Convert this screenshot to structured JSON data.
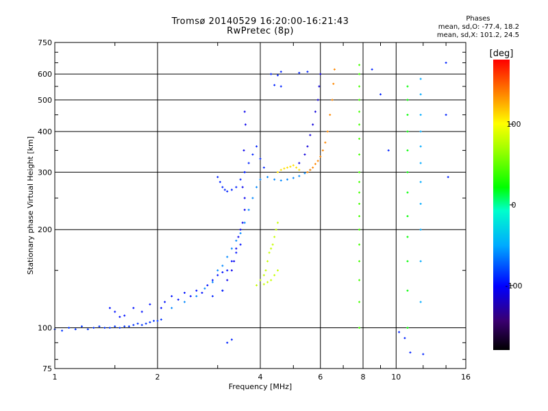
{
  "chart_data": {
    "type": "scatter",
    "title": "Tromsø 20140529 16:20:00-16:21:43",
    "subtitle": "RwPretec (8p)",
    "xlabel": "Frequency [MHz]",
    "ylabel": "Stationary phase Virtual Height [km]",
    "xscale": "log",
    "yscale": "log",
    "xlim": [
      1,
      16
    ],
    "ylim": [
      75,
      750
    ],
    "xticks": [
      1,
      2,
      4,
      6,
      8,
      10,
      16
    ],
    "yticks": [
      75,
      100,
      200,
      300,
      400,
      500,
      600,
      750
    ],
    "grid": true,
    "phase_box": {
      "title": "Phases",
      "line1": "mean, sd,O: -77.4, 18.2",
      "line2": "mean, sd,X: 101.2, 24.5"
    },
    "colorbar": {
      "label": "[deg]",
      "ticks": [
        "100",
        "0",
        "-100"
      ],
      "range": [
        -180,
        180
      ],
      "colormap": "rainbow"
    },
    "series": [
      {
        "name": "",
        "color_phase": -95,
        "points": [
          [
            1.0,
            99
          ],
          [
            1.05,
            98
          ],
          [
            1.1,
            100
          ],
          [
            1.15,
            99
          ],
          [
            1.2,
            101
          ],
          [
            1.25,
            99
          ],
          [
            1.3,
            100
          ],
          [
            1.35,
            101
          ],
          [
            1.4,
            100
          ],
          [
            1.45,
            100
          ],
          [
            1.5,
            101
          ],
          [
            1.55,
            100
          ],
          [
            1.6,
            101
          ],
          [
            1.65,
            101
          ],
          [
            1.7,
            102
          ],
          [
            1.75,
            103
          ],
          [
            1.8,
            102
          ],
          [
            1.85,
            103
          ],
          [
            1.9,
            104
          ],
          [
            1.95,
            105
          ],
          [
            2.0,
            105
          ],
          [
            2.05,
            106
          ]
        ]
      },
      {
        "name": "",
        "color_phase": -105,
        "points": [
          [
            1.45,
            115
          ],
          [
            1.5,
            112
          ],
          [
            1.55,
            108
          ],
          [
            1.6,
            109
          ],
          [
            1.7,
            115
          ],
          [
            1.8,
            112
          ],
          [
            1.9,
            118
          ],
          [
            2.05,
            115
          ],
          [
            2.1,
            120
          ],
          [
            2.2,
            125
          ],
          [
            2.3,
            122
          ],
          [
            2.4,
            128
          ],
          [
            2.5,
            125
          ],
          [
            2.6,
            130
          ],
          [
            2.7,
            128
          ],
          [
            2.8,
            135
          ],
          [
            2.9,
            140
          ],
          [
            3.0,
            145
          ],
          [
            3.1,
            148
          ],
          [
            3.2,
            150
          ],
          [
            3.3,
            160
          ],
          [
            3.4,
            170
          ],
          [
            3.5,
            180
          ]
        ]
      },
      {
        "name": "",
        "color_phase": -70,
        "points": [
          [
            2.2,
            115
          ],
          [
            2.4,
            120
          ],
          [
            2.6,
            125
          ],
          [
            2.75,
            132
          ],
          [
            2.9,
            138
          ],
          [
            3.0,
            150
          ],
          [
            3.1,
            155
          ],
          [
            3.2,
            165
          ],
          [
            3.3,
            175
          ],
          [
            3.4,
            185
          ],
          [
            3.5,
            195
          ],
          [
            3.6,
            210
          ],
          [
            3.7,
            230
          ],
          [
            3.8,
            250
          ],
          [
            3.9,
            270
          ],
          [
            4.0,
            285
          ],
          [
            4.2,
            290
          ],
          [
            4.4,
            285
          ],
          [
            4.6,
            283
          ],
          [
            4.8,
            285
          ],
          [
            5.0,
            288
          ],
          [
            5.2,
            292
          ],
          [
            5.4,
            298
          ],
          [
            5.6,
            305
          ]
        ]
      },
      {
        "name": "",
        "color_phase": -115,
        "points": [
          [
            3.1,
            130
          ],
          [
            3.2,
            140
          ],
          [
            3.3,
            150
          ],
          [
            3.35,
            160
          ],
          [
            3.4,
            175
          ],
          [
            3.45,
            190
          ],
          [
            3.5,
            200
          ],
          [
            3.55,
            210
          ],
          [
            3.6,
            230
          ],
          [
            3.6,
            250
          ],
          [
            3.55,
            270
          ],
          [
            3.6,
            300
          ],
          [
            3.58,
            350
          ],
          [
            3.62,
            420
          ],
          [
            3.6,
            460
          ]
        ]
      },
      {
        "name": "",
        "color_phase": -100,
        "points": [
          [
            3.0,
            290
          ],
          [
            3.05,
            280
          ],
          [
            3.1,
            270
          ],
          [
            3.15,
            265
          ],
          [
            3.2,
            262
          ],
          [
            3.3,
            265
          ],
          [
            3.4,
            270
          ],
          [
            3.5,
            285
          ],
          [
            3.6,
            300
          ],
          [
            3.7,
            320
          ],
          [
            3.8,
            340
          ],
          [
            3.9,
            360
          ],
          [
            4.0,
            330
          ],
          [
            4.1,
            310
          ]
        ]
      },
      {
        "name": "",
        "color_phase": 80,
        "points": [
          [
            3.9,
            135
          ],
          [
            4.0,
            140
          ],
          [
            4.1,
            145
          ],
          [
            4.15,
            150
          ],
          [
            4.2,
            160
          ],
          [
            4.25,
            170
          ],
          [
            4.3,
            175
          ],
          [
            4.35,
            180
          ],
          [
            4.4,
            190
          ],
          [
            4.45,
            200
          ],
          [
            4.5,
            210
          ],
          [
            4.5,
            150
          ],
          [
            4.4,
            145
          ],
          [
            4.3,
            140
          ],
          [
            4.2,
            138
          ],
          [
            4.1,
            136
          ]
        ]
      },
      {
        "name": "",
        "color_phase": 110,
        "points": [
          [
            4.5,
            300
          ],
          [
            4.6,
            305
          ],
          [
            4.7,
            308
          ],
          [
            4.8,
            310
          ],
          [
            4.9,
            312
          ],
          [
            5.0,
            315
          ],
          [
            5.1,
            310
          ],
          [
            5.2,
            305
          ]
        ]
      },
      {
        "name": "",
        "color_phase": 140,
        "points": [
          [
            5.5,
            300
          ],
          [
            5.6,
            305
          ],
          [
            5.7,
            310
          ],
          [
            5.8,
            318
          ],
          [
            5.9,
            325
          ],
          [
            6.0,
            335
          ],
          [
            6.1,
            350
          ],
          [
            6.2,
            370
          ],
          [
            6.3,
            400
          ],
          [
            6.4,
            450
          ],
          [
            6.5,
            500
          ],
          [
            6.55,
            560
          ],
          [
            6.6,
            620
          ]
        ]
      },
      {
        "name": "",
        "color_phase": -120,
        "points": [
          [
            5.2,
            320
          ],
          [
            5.4,
            340
          ],
          [
            5.5,
            360
          ],
          [
            5.6,
            390
          ],
          [
            5.7,
            420
          ],
          [
            5.8,
            460
          ],
          [
            5.9,
            500
          ],
          [
            5.95,
            550
          ],
          [
            6.0,
            600
          ]
        ]
      },
      {
        "name": "",
        "color_phase": 40,
        "points": [
          [
            7.8,
            100
          ],
          [
            7.8,
            120
          ],
          [
            7.8,
            140
          ],
          [
            7.8,
            160
          ],
          [
            7.8,
            180
          ],
          [
            7.8,
            200
          ],
          [
            7.8,
            220
          ],
          [
            7.8,
            240
          ],
          [
            7.8,
            260
          ],
          [
            7.8,
            280
          ],
          [
            7.8,
            300
          ],
          [
            7.8,
            340
          ],
          [
            7.8,
            380
          ],
          [
            7.8,
            420
          ],
          [
            7.8,
            460
          ],
          [
            7.8,
            500
          ],
          [
            7.8,
            550
          ],
          [
            7.8,
            600
          ],
          [
            7.8,
            640
          ]
        ]
      },
      {
        "name": "",
        "color_phase": 20,
        "points": [
          [
            10.8,
            100
          ],
          [
            10.8,
            130
          ],
          [
            10.8,
            160
          ],
          [
            10.8,
            190
          ],
          [
            10.8,
            220
          ],
          [
            10.8,
            260
          ],
          [
            10.8,
            300
          ],
          [
            10.8,
            350
          ],
          [
            10.8,
            400
          ],
          [
            10.8,
            450
          ],
          [
            10.8,
            500
          ],
          [
            10.8,
            550
          ]
        ]
      },
      {
        "name": "",
        "color_phase": -60,
        "points": [
          [
            11.8,
            120
          ],
          [
            11.8,
            160
          ],
          [
            11.8,
            200
          ],
          [
            11.8,
            240
          ],
          [
            11.8,
            280
          ],
          [
            11.8,
            320
          ],
          [
            11.8,
            360
          ],
          [
            11.8,
            400
          ],
          [
            11.8,
            450
          ],
          [
            11.8,
            520
          ],
          [
            11.8,
            580
          ]
        ]
      },
      {
        "name": "",
        "color_phase": -100,
        "points": [
          [
            4.3,
            600
          ],
          [
            4.5,
            595
          ],
          [
            4.6,
            610
          ],
          [
            4.4,
            555
          ],
          [
            4.6,
            550
          ],
          [
            5.2,
            605
          ],
          [
            5.5,
            610
          ],
          [
            14.0,
            650
          ],
          [
            14.0,
            450
          ],
          [
            14.2,
            290
          ],
          [
            9.5,
            350
          ],
          [
            9.0,
            520
          ],
          [
            8.5,
            620
          ],
          [
            3.2,
            90
          ],
          [
            3.3,
            92
          ],
          [
            10.2,
            97
          ],
          [
            10.6,
            93
          ],
          [
            11.0,
            84
          ],
          [
            12.0,
            83
          ],
          [
            3.1,
            130
          ],
          [
            2.9,
            125
          ]
        ]
      }
    ]
  }
}
